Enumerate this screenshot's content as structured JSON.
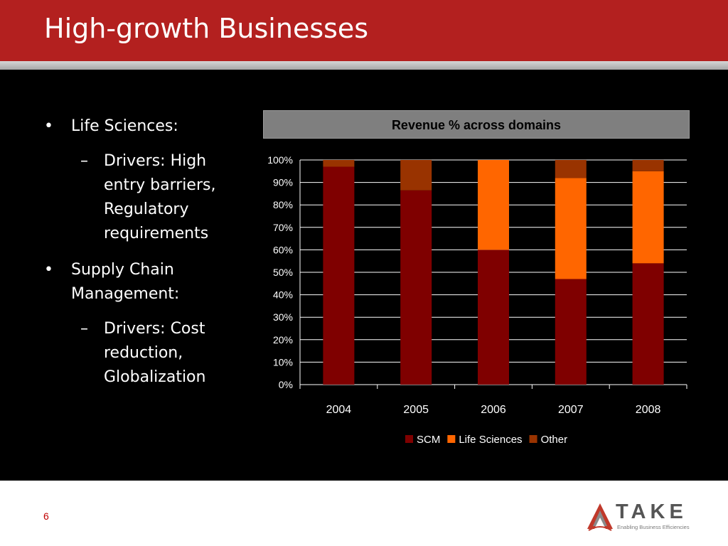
{
  "slide": {
    "title": "High-growth Businesses",
    "page_number": "6"
  },
  "bullets": [
    {
      "text": "Life Sciences:",
      "sub": "Drivers: High entry barriers, Regulatory requirements",
      "sub_lines": [
        "Drivers: High",
        "entry barriers,",
        "Regulatory",
        "requirements"
      ]
    },
    {
      "text_lines": [
        "Supply Chain",
        "Management:"
      ],
      "sub_lines": [
        "Drivers: Cost",
        "reduction,",
        "Globalization"
      ]
    }
  ],
  "bullet_symbol": "•",
  "dash_symbol": "–",
  "logo": {
    "name": "TAKE",
    "tagline": "Enabling Business Efficiencies",
    "accent_color": "#c0392b"
  },
  "colors": {
    "title_bar": "#b3201f",
    "panel": "#000000",
    "scm": "#7f0000",
    "life_sciences": "#ff6600",
    "other": "#993300"
  },
  "chart_data": {
    "type": "bar",
    "stacked": true,
    "title": "Revenue % across domains",
    "categories": [
      "2004",
      "2005",
      "2006",
      "2007",
      "2008"
    ],
    "series": [
      {
        "name": "SCM",
        "values": [
          97,
          86.5,
          60,
          47,
          54
        ],
        "color": "#7f0000"
      },
      {
        "name": "Life Sciences",
        "values": [
          0,
          0,
          40,
          45,
          41
        ],
        "color": "#ff6600"
      },
      {
        "name": "Other",
        "values": [
          3,
          13.5,
          0,
          8,
          5
        ],
        "color": "#993300"
      }
    ],
    "ylim": [
      0,
      100
    ],
    "yticks": [
      "0%",
      "10%",
      "20%",
      "30%",
      "40%",
      "50%",
      "60%",
      "70%",
      "80%",
      "90%",
      "100%"
    ],
    "grid": true,
    "legend": "bottom"
  }
}
